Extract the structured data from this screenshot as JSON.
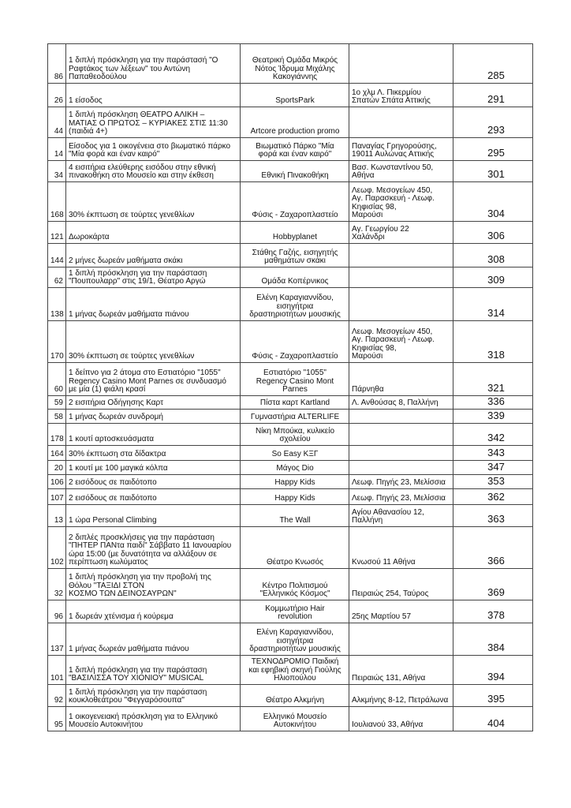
{
  "table": {
    "rows": [
      {
        "id": "86",
        "description": "1 διπλή πρόσκληση για την παράστασή \"Ο\nΡαφτάκος των λέξεων\" του Αντώνη\nΠαπαθεοδούλου",
        "organization": "Θεατρική Ομάδα Μικρός\nΝότος Ίδρυμα Μιχάλης\nΚακογιάννης",
        "address": "",
        "number": "285"
      },
      {
        "id": "26",
        "description": "1 είσοδος",
        "organization": "SportsPark",
        "address": "1ο χλμ Λ. Πικερμίου\nΣπατών Σπάτα Αττικής",
        "number": "291"
      },
      {
        "id": "44",
        "description": "1 διπλή πρόσκληση ΘΕΑΤΡΟ ΑΛΙΚΗ –\nΜΑΤΙΑΣ Ο ΠΡΩΤΟΣ – ΚΥΡΙΑΚΕΣ ΣΤΙΣ 11:30\n(παιδιά 4+)",
        "organization": "Artcore production promo",
        "address": "",
        "number": "293"
      },
      {
        "id": "14",
        "description": "Είσοδος για 1 οικογένεια στο βιωματικό πάρκο\n\"Μία φορά και έναν καιρό\"",
        "organization": "Βιωματικό Πάρκο \"Μία\nφορά και έναν καιρό\"",
        "address": "Παναγίας Γρηγορούσης,\n19011 Αυλώνας Αττικής",
        "number": "295"
      },
      {
        "id": "34",
        "description": "4 εισιτήρια ελεύθερης εισόδου στην εθνική\nπινακοθήκη στο Μουσείο και στην έκθεση",
        "organization": "Εθνική Πινακοθήκη",
        "address": "Βασ. Κωνσταντίνου 50,\nΑθήνα",
        "number": "301"
      },
      {
        "id": "168",
        "description": "30% έκπτωση σε τούρτες γενεθλίων",
        "organization": "Φύσις - Ζαχαροπλαστείο",
        "address": "Λεωφ. Μεσογείων 450,\nΑγ. Παρασκευή - Λεωφ.\nΚηφισίας 98,\nΜαρούσι",
        "number": "304"
      },
      {
        "id": "121",
        "description": "Δωροκάρτα",
        "organization": "Hobbyplanet",
        "address": "Αγ. Γεωργίου 22\n Χαλάνδρι",
        "number": "306"
      },
      {
        "id": "144",
        "description": "2 μήνες δωρεάν μαθήματα σκάκι",
        "organization": "Στάθης Γαζής, εισηγητής\nμαθημάτων σκάκι",
        "address": "",
        "number": "308"
      },
      {
        "id": "62",
        "description": "1 διπλή πρόσκληση για την παράσταση\n\"Πουπουλαρρ\" στις 19/1, Θέατρο Αργώ",
        "organization": "Ομάδα Κοπέρνικος",
        "address": "",
        "number": "309"
      },
      {
        "id": "138",
        "description": "1 μήνας δωρεάν μαθήματα πιάνου",
        "organization": "Ελένη Καραγιαννίδου,\nεισηγήτρια\nδραστηριοτήτων μουσικής",
        "address": "",
        "number": "314"
      },
      {
        "id": "170",
        "description": "30% έκπτωση σε τούρτες γενεθλίων",
        "organization": "Φύσις - Ζαχαροπλαστείο",
        "address": "Λεωφ. Μεσογείων 450,\nΑγ. Παρασκευή - Λεωφ.\nΚηφισίας 98,\nΜαρούσι",
        "number": "318"
      },
      {
        "id": "60",
        "description": "1 δείπνο για 2 άτομα στο Εστιατόριο \"1055\"\nRegency Casino Mont Parnes σε συνδυασμό\nμε μία (1) φιάλη κρασί",
        "organization": "Εστιατόριο \"1055\"\nRegency Casino Mont\nParnes",
        "address": "Πάρνηθα",
        "number": "321"
      },
      {
        "id": "59",
        "description": "2 εισιτήρια Οδήγησης Καρτ",
        "organization": "Πίστα καρτ Kartland",
        "address": "Λ. Ανθούσας 8, Παλλήνη",
        "number": "336"
      },
      {
        "id": "58",
        "description": "1 μήνας δωρεάν συνδρομή",
        "organization": "Γυμναστήρια ALTERLIFE",
        "address": "",
        "number": "339"
      },
      {
        "id": "178",
        "description": "1 κουτί αρτοσκευάσματα",
        "organization": "Νίκη Μπούκα, κυλικείο\nσχολείου",
        "address": "",
        "number": "342"
      },
      {
        "id": "164",
        "description": "30% έκπτωση στα δίδακτρα",
        "organization": "So Easy ΚΞΓ",
        "address": "",
        "number": "343"
      },
      {
        "id": "20",
        "description": "1 κουτί με 100 μαγικά κόλπα",
        "organization": "Μάγος Dio",
        "address": "",
        "number": "347"
      },
      {
        "id": "106",
        "description": "2 εισόδους σε παιδότοπο",
        "organization": "Happy Kids",
        "address": "Λεωφ. Πηγής 23, Μελίσσια",
        "number": "353"
      },
      {
        "id": "107",
        "description": "2 εισόδους σε παιδότοπο",
        "organization": "Happy Kids",
        "address": "Λεωφ. Πηγής 23, Μελίσσια",
        "number": "362"
      },
      {
        "id": "13",
        "description": "1 ώρα Personal Climbing",
        "organization": "The Wall",
        "address": "Αγίου Αθανασίου 12,\nΠαλλήνη",
        "number": "363"
      },
      {
        "id": "102",
        "description": "2 διπλές προσκλήσεις για την παράσταση\n\"ΠΗΤΕΡ ΠΑΝτα παιδί\" Σάββατο 11 Ιανουαρίου\nώρα 15:00 (με δυνατότητα να αλλάξουν σε\nπερίπτωση κωλύματος",
        "organization": "Θέατρο Κνωσός",
        "address": "Κνωσού 11 Αθήνα",
        "number": "366"
      },
      {
        "id": "32",
        "description": "1 διπλή πρόσκληση για την προβολή της\nΘόλου \"ΤΑΞΙΔΙ ΣΤΟΝ\n ΚΟΣΜΟ ΤΩΝ ΔΕΙΝΟΣΑΥΡΩΝ\"",
        "organization": "Κέντρο Πολιτισμού\n\"Ελληνικός Κόσμος\"",
        "address": "Πειραιώς 254, Ταύρος",
        "number": "369"
      },
      {
        "id": "96",
        "description": "1 δωρεάν χτένισμα ή κούρεμα",
        "organization": "Κομμωτήριο Hair\nrevolution",
        "address": "25ης Μαρτίου 57",
        "number": "378"
      },
      {
        "id": "137",
        "description": "1 μήνας δωρεάν μαθήματα πιάνου",
        "organization": "Ελένη Καραγιαννίδου,\nεισηγήτρια\nδραστηριοτήτων μουσικής",
        "address": "",
        "number": "384"
      },
      {
        "id": "101",
        "description": "1 διπλή πρόσκληση για την παράσταση\n\"ΒΑΣΙΛΙΣΣΑ ΤΟΥ ΧΙΟΝΙΟΥ\" MUSICAL",
        "organization": "ΤΕΧΝΟΔΡΟΜΙΟ Παιδική\nκαι εφηβική σκηνή Γιούλης\nΗλιοπούλου",
        "address": "Πειραιώς 131, Αθήνα",
        "number": "394"
      },
      {
        "id": "92",
        "description": "1 διπλή πρόσκληση για την παράσταση\nκουκλοθεάτρου \"Φεγγαρόσουπα\"",
        "organization": "Θέατρο Αλκμήνη",
        "address": "Αλκμήνης 8-12, Πετράλωνα",
        "number": "395"
      },
      {
        "id": "95",
        "description": "1 οικογενειακή πρόσκληση για το Ελληνικό\nΜουσείο Αυτοκινήτου",
        "organization": "Ελληνικό Μουσείο\nΑυτοκινήτου",
        "address": "Ιουλιανού 33, Αθήνα",
        "number": "404"
      }
    ]
  }
}
